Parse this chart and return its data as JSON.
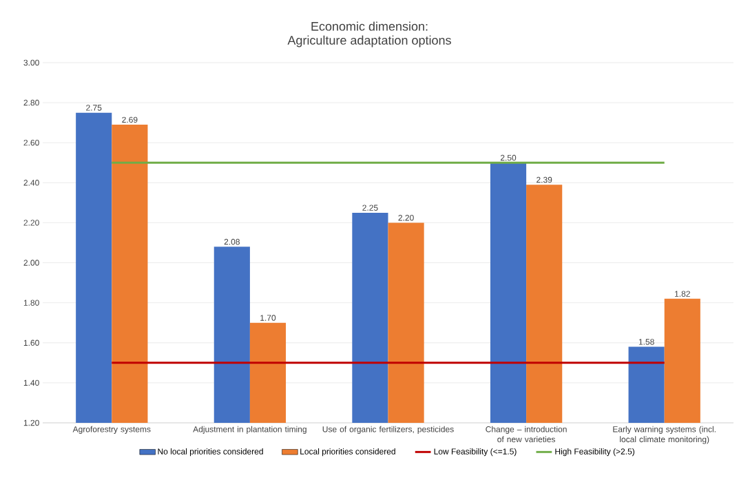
{
  "chart_data": {
    "type": "bar",
    "title": "Economic dimension:",
    "subtitle": "Agriculture adaptation options",
    "categories": [
      "Agroforestry systems",
      "Adjustment in plantation timing",
      "Use of organic fertilizers, pesticides",
      "Change – introduction of new varieties",
      "Early warning systems (incl. local climate monitoring)"
    ],
    "series": [
      {
        "name": "No local priorities considered",
        "color": "#4472c4",
        "values": [
          2.75,
          2.08,
          2.25,
          2.5,
          1.58
        ],
        "value_labels": [
          "2.75",
          "2.08",
          "2.25",
          "2.50",
          "1.58"
        ]
      },
      {
        "name": "Local priorities considered",
        "color": "#ed7d31",
        "values": [
          2.69,
          1.7,
          2.2,
          2.39,
          1.82
        ],
        "value_labels": [
          "2.69",
          "1.70",
          "2.20",
          "2.39",
          "1.82"
        ]
      },
      {
        "name": "Low Feasibility (<=1.5)",
        "type": "line",
        "color": "#c00000",
        "values": [
          1.5,
          1.5,
          1.5,
          1.5,
          1.5
        ]
      },
      {
        "name": "High Feasibility (>2.5)",
        "type": "line",
        "color": "#70ad47",
        "values": [
          2.5,
          2.5,
          2.5,
          2.5,
          2.5
        ]
      }
    ],
    "ylim": [
      1.2,
      3.0
    ],
    "yticks": [
      {
        "value": 1.2,
        "label": "1.20"
      },
      {
        "value": 1.4,
        "label": "1.40"
      },
      {
        "value": 1.6,
        "label": "1.60"
      },
      {
        "value": 1.8,
        "label": "1.80"
      },
      {
        "value": 2.0,
        "label": "2.00"
      },
      {
        "value": 2.2,
        "label": "2.20"
      },
      {
        "value": 2.4,
        "label": "2.40"
      },
      {
        "value": 2.6,
        "label": "2.60"
      },
      {
        "value": 2.8,
        "label": "2.80"
      },
      {
        "value": 3.0,
        "label": "3.00"
      }
    ],
    "grid": "y",
    "legend": "bottom",
    "marker": "none"
  }
}
